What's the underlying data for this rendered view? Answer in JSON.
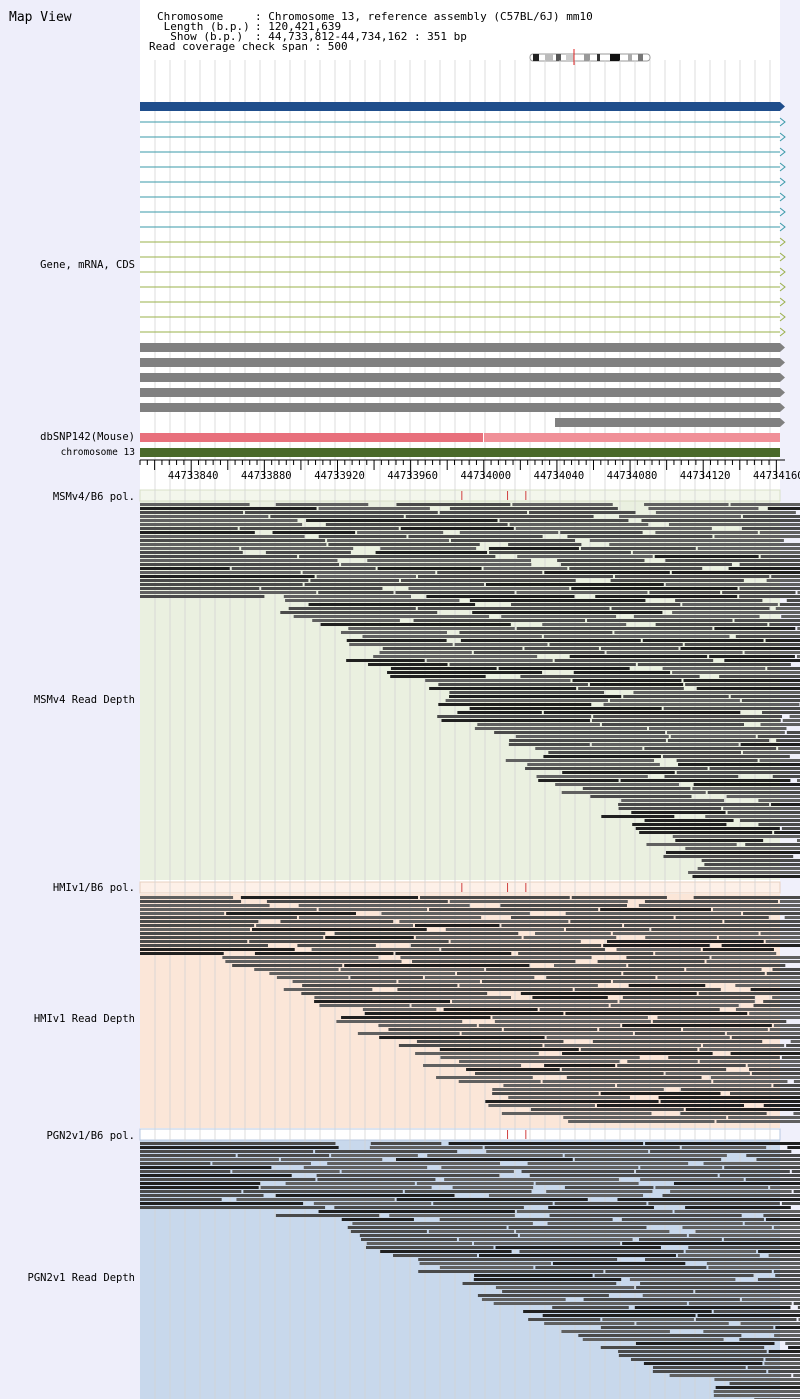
{
  "map_title": "Map View",
  "header": {
    "chromosome_key": "Chromosome    ",
    "chromosome_val": ": Chromosome 13, reference assembly (C57BL/6J) mm10",
    "length_key": " Length (b.p.)",
    "length_val": ": 120,421,639",
    "show_key": "  Show (b.p.)",
    "show_val": ": 44,733,812-44,734,162 : 351 bp",
    "coverage": "Read coverage check span : 500"
  },
  "tracks": {
    "gene": "Gene, mRNA, CDS",
    "dbsnp": "dbSNP142(Mouse)",
    "chromosome": "chromosome 13",
    "msm_pol": "MSMv4/B6 pol.",
    "msm_depth": "MSMv4 Read Depth",
    "hmi_pol": "HMIv1/B6 pol.",
    "hmi_depth": "HMIv1 Read Depth",
    "pgn_pol": "PGN2v1/B6 pol.",
    "pgn_depth": "PGN2v1 Read Depth"
  },
  "ruler": {
    "start": 44733812,
    "end": 44734162,
    "labels": [
      "44733840",
      "44733880",
      "44733920",
      "44733960",
      "44734000",
      "44734040",
      "44734080",
      "44734120",
      "44734160"
    ]
  },
  "colors": {
    "gene_main": "#1f4e8c",
    "mrna_teal": "#3a9aa8",
    "mrna_olive": "#9ab04a",
    "cds_gray": "#808080",
    "snp_red": "#e8707c",
    "chromosome_green": "#4a6a2a",
    "msm_bg": "#eaf0e0",
    "hmi_bg": "#fbe6d8",
    "pgn_bg": "#c8d8ec",
    "read_dark": "#505050",
    "variant_red": "#d04040"
  },
  "variant_positions_bp": [
    44733988,
    44734013,
    44734023
  ]
}
